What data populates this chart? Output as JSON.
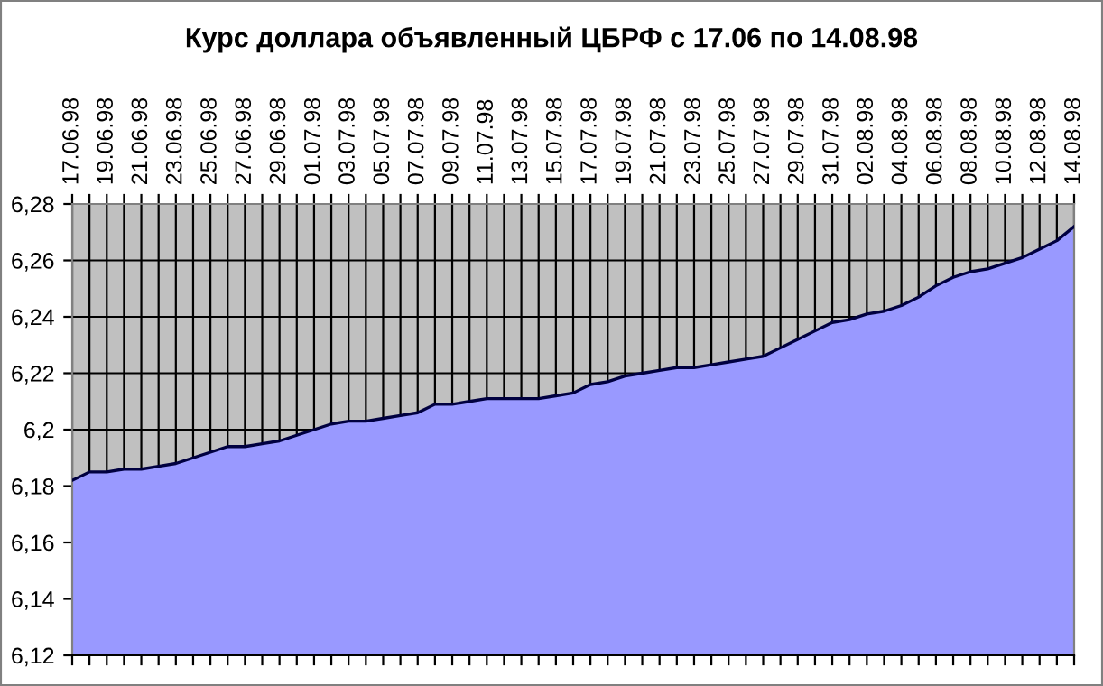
{
  "chart_data": {
    "type": "area",
    "title": "Курс доллара объявленный ЦБРФ с 17.06 по 14.08.98",
    "categories": [
      "17.06.98",
      null,
      "19.06.98",
      null,
      "21.06.98",
      null,
      "23.06.98",
      null,
      "25.06.98",
      null,
      "27.06.98",
      null,
      "29.06.98",
      null,
      "01.07.98",
      null,
      "03.07.98",
      null,
      "05.07.98",
      null,
      "07.07.98",
      null,
      "09.07.98",
      null,
      "11.07.98",
      null,
      "13.07.98",
      null,
      "15.07.98",
      null,
      "17.07.98",
      null,
      "19.07.98",
      null,
      "21.07.98",
      null,
      "23.07.98",
      null,
      "25.07.98",
      null,
      "27.07.98",
      null,
      "29.07.98",
      null,
      "31.07.98",
      null,
      "02.08.98",
      null,
      "04.08.98",
      null,
      "06.08.98",
      null,
      "08.08.98",
      null,
      "10.08.98",
      null,
      "12.08.98",
      null,
      "14.08.98"
    ],
    "series": [
      {
        "color": "#9999ff",
        "values": [
          6.182,
          6.185,
          6.185,
          6.186,
          6.186,
          6.187,
          6.188,
          6.19,
          6.192,
          6.194,
          6.194,
          6.195,
          6.196,
          6.198,
          6.2,
          6.202,
          6.203,
          6.203,
          6.204,
          6.205,
          6.206,
          6.209,
          6.209,
          6.21,
          6.211,
          6.211,
          6.211,
          6.211,
          6.212,
          6.213,
          6.216,
          6.217,
          6.219,
          6.22,
          6.221,
          6.222,
          6.222,
          6.223,
          6.224,
          6.225,
          6.226,
          6.229,
          6.232,
          6.235,
          6.238,
          6.239,
          6.241,
          6.242,
          6.244,
          6.247,
          6.251,
          6.254,
          6.256,
          6.257,
          6.259,
          6.261,
          6.264,
          6.267,
          6.272
        ]
      }
    ],
    "ylim": [
      6.12,
      6.28
    ],
    "yticks": [
      {
        "value": 6.12,
        "label": "6,12"
      },
      {
        "value": 6.14,
        "label": "6,14"
      },
      {
        "value": 6.16,
        "label": "6,16"
      },
      {
        "value": 6.18,
        "label": "6,18"
      },
      {
        "value": 6.2,
        "label": "6,2"
      },
      {
        "value": 6.22,
        "label": "6,22"
      },
      {
        "value": 6.24,
        "label": "6,24"
      },
      {
        "value": 6.26,
        "label": "6,26"
      },
      {
        "value": 6.28,
        "label": "6,28"
      }
    ],
    "grid": true
  }
}
